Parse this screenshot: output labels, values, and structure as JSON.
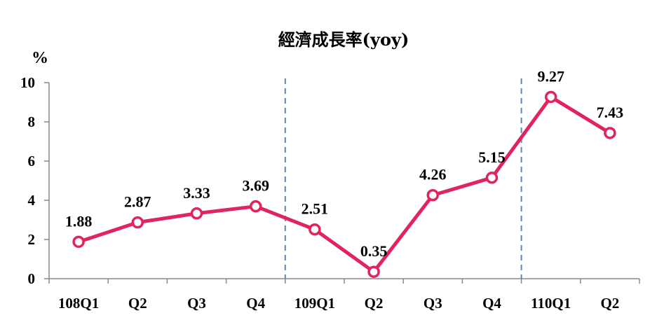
{
  "chart_data": {
    "type": "line",
    "title": "經濟成長率(yoy)",
    "ylabel": "%",
    "xlabel": "",
    "ylim": [
      0,
      10
    ],
    "yticks": [
      0,
      2,
      4,
      6,
      8,
      10
    ],
    "categories": [
      "108Q1",
      "Q2",
      "Q3",
      "Q4",
      "109Q1",
      "Q2",
      "Q3",
      "Q4",
      "110Q1",
      "Q2"
    ],
    "series": [
      {
        "values": [
          1.88,
          2.87,
          3.33,
          3.69,
          2.51,
          0.35,
          4.26,
          5.15,
          9.27,
          7.43
        ],
        "labels": [
          "1.88",
          "2.87",
          "3.33",
          "3.69",
          "2.51",
          "0.35",
          "4.26",
          "5.15",
          "9.27",
          "7.43"
        ],
        "color": "#e0245e"
      }
    ],
    "year_separators_after_index": [
      3,
      7
    ],
    "separator_color": "#5a86b8",
    "legend": "none",
    "grid": false
  }
}
